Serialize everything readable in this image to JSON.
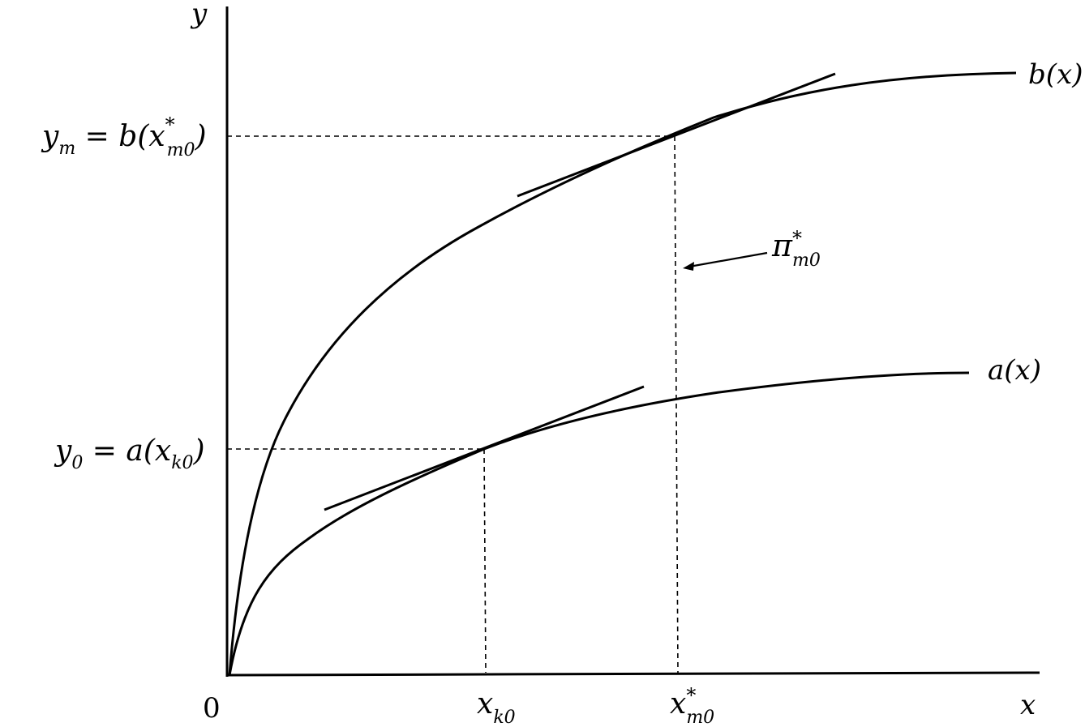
{
  "axes": {
    "y_label": "y",
    "x_label": "x",
    "origin_label": "0"
  },
  "curves": {
    "b": {
      "name": "b(x)"
    },
    "a": {
      "name": "a(x)"
    }
  },
  "y_labels": {
    "ym": {
      "var": "y",
      "sub": "m",
      "eq": " = b(x",
      "star": "*",
      "sub2": "m0",
      "close": ")"
    },
    "y0": {
      "var": "y",
      "sub": "0",
      "eq": " = a(x",
      "sub2": "k0",
      "close": ")"
    }
  },
  "x_labels": {
    "xk0": {
      "var": "x",
      "sub": "k0"
    },
    "xm0": {
      "var": "x",
      "star": "*",
      "sub": "m0"
    }
  },
  "annotation": {
    "symbol": "π",
    "star": "*",
    "sub": "m0"
  }
}
